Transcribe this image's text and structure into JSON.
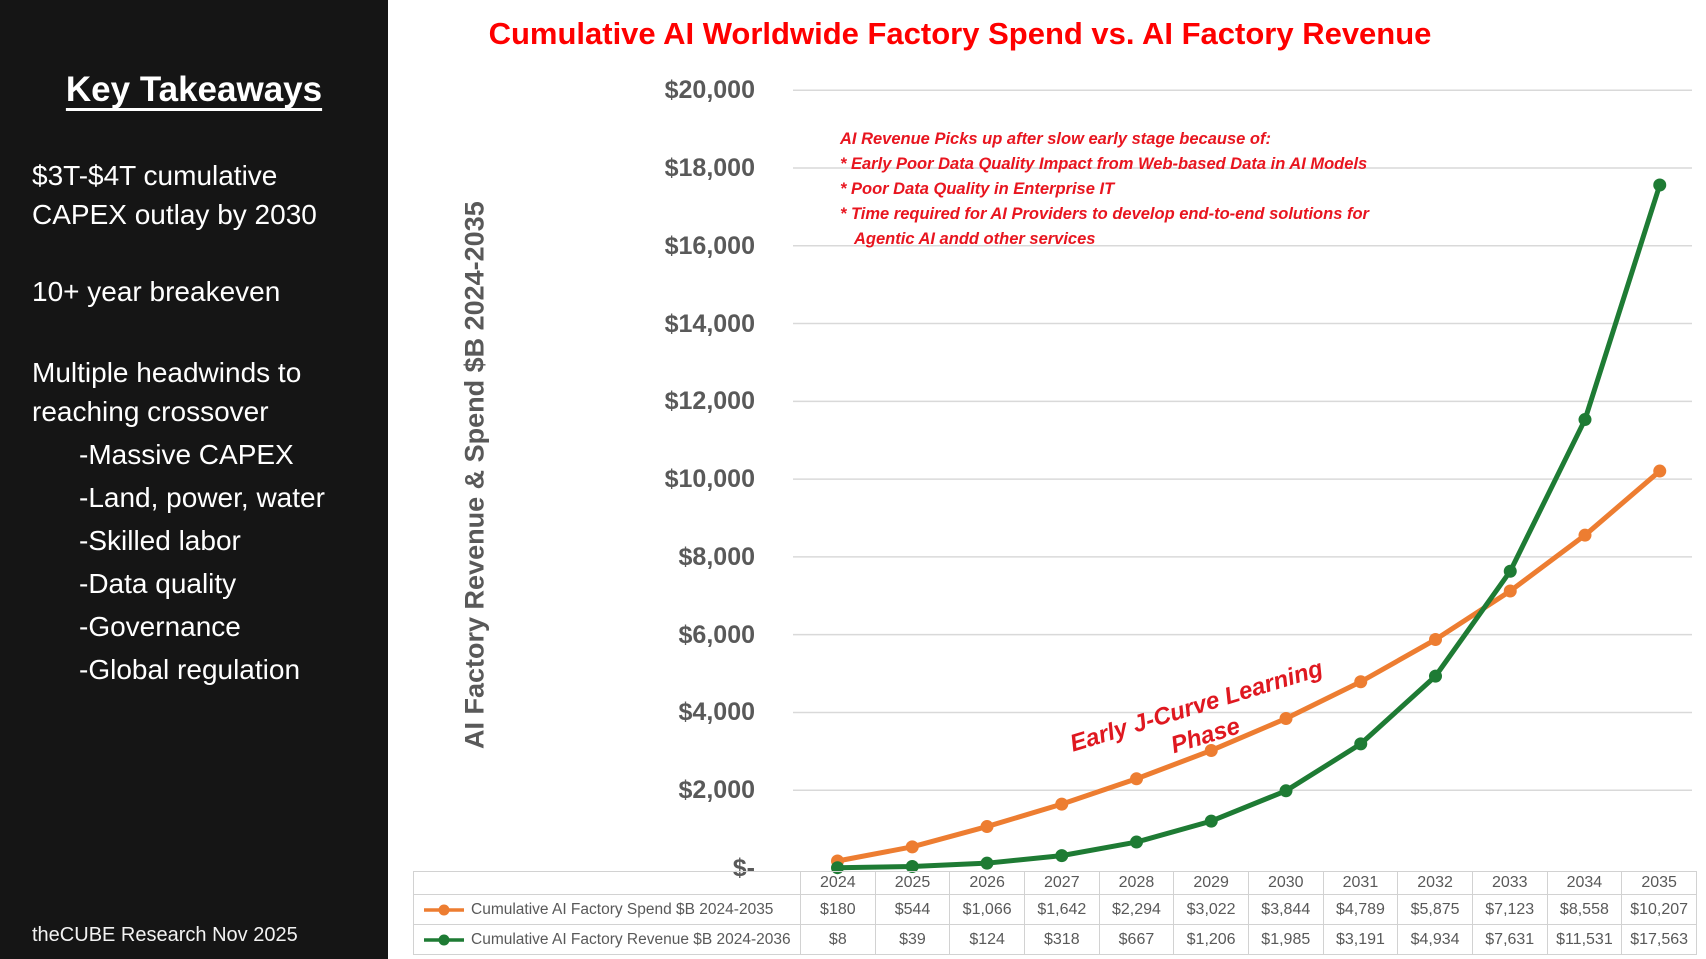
{
  "sidebar": {
    "title": "Key Takeaways",
    "paragraphs": [
      "$3T-$4T cumulative CAPEX outlay by 2030",
      "10+ year breakeven",
      "Multiple headwinds to reaching crossover"
    ],
    "bullets": [
      "-Massive CAPEX",
      "-Land, power, water",
      "-Skilled labor",
      "-Data quality",
      "-Governance",
      "-Global regulation"
    ],
    "footer": "theCUBE Research Nov 2025"
  },
  "chart": {
    "annotation_lines": [
      "AI Revenue Picks up after slow early stage because of:",
      "* Early Poor Data Quality Impact from Web-based Data in AI Models",
      "* Poor Data Quality in Enterprise IT",
      "* Time required for AI Providers to develop end-to-end solutions for",
      "Agentic AI andd other services"
    ],
    "jcurve": {
      "line1": "Early J-Curve Learning",
      "line2": "Phase"
    }
  },
  "chart_data": {
    "type": "line",
    "title": "Cumulative AI Worldwide Factory Spend vs. AI Factory Revenue",
    "title_color": "#fe0000",
    "xlabel": "",
    "ylabel": "AI Factory Revenue & Spend $B 2024-2035",
    "ylim": [
      0,
      20000
    ],
    "grid": "horizontal",
    "gridline_color": "#d9d9d9",
    "legend_position": "bottom-table",
    "categories": [
      "2024",
      "2025",
      "2026",
      "2027",
      "2028",
      "2029",
      "2030",
      "2031",
      "2032",
      "2033",
      "2034",
      "2035"
    ],
    "y_ticks": [
      {
        "v": 20000,
        "label": "$20,000"
      },
      {
        "v": 18000,
        "label": "$18,000"
      },
      {
        "v": 16000,
        "label": "$16,000"
      },
      {
        "v": 14000,
        "label": "$14,000"
      },
      {
        "v": 12000,
        "label": "$12,000"
      },
      {
        "v": 10000,
        "label": "$10,000"
      },
      {
        "v": 8000,
        "label": "$8,000"
      },
      {
        "v": 6000,
        "label": "$6,000"
      },
      {
        "v": 4000,
        "label": "$4,000"
      },
      {
        "v": 2000,
        "label": "$2,000"
      },
      {
        "v": 0,
        "label": "$-"
      }
    ],
    "series": [
      {
        "name": "Cumulative AI Factory Spend $B 2024-2035",
        "color": "#ED7D31",
        "values": [
          180,
          544,
          1066,
          1642,
          2294,
          3022,
          3844,
          4789,
          5875,
          7123,
          8558,
          10207
        ],
        "display_values": [
          "$180",
          "$544",
          "$1,066",
          "$1,642",
          "$2,294",
          "$3,022",
          "$3,844",
          "$4,789",
          "$5,875",
          "$7,123",
          "$8,558",
          "$10,207"
        ]
      },
      {
        "name": "Cumulative AI Factory Revenue $B 2024-2036",
        "color": "#1E7B34",
        "values": [
          8,
          39,
          124,
          318,
          667,
          1206,
          1985,
          3191,
          4934,
          7631,
          11531,
          17563
        ],
        "display_values": [
          "$8",
          "$39",
          "$124",
          "$318",
          "$667",
          "$1,206",
          "$1,985",
          "$3,191",
          "$4,934",
          "$7,631",
          "$11,531",
          "$17,563"
        ]
      }
    ]
  }
}
